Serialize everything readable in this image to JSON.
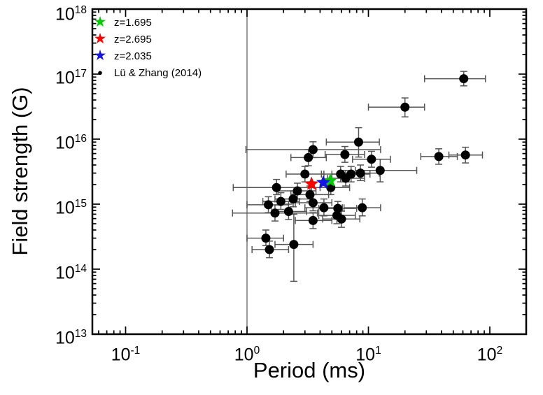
{
  "chart_data": {
    "type": "scatter",
    "title": "",
    "xlabel": "Period (ms)",
    "ylabel": "Field strength (G)",
    "x_scale": "log",
    "y_scale": "log",
    "xlim": [
      0.053,
      200
    ],
    "ylim": [
      10000000000000.0,
      1e+18
    ],
    "x_tick_exponents": [
      -1,
      0,
      1,
      2
    ],
    "y_tick_exponents": [
      13,
      14,
      15,
      16,
      17,
      18
    ],
    "grid": false,
    "legend_position": "top-left",
    "vertical_reference_line_x": 1,
    "colors": {
      "green_star": "#00cc00",
      "red_star": "#ff0000",
      "blue_star": "#1414e6",
      "data_points": "#000000",
      "error_bars": "#555555",
      "reference_line": "#808080"
    },
    "series": [
      {
        "name": "z=1.695",
        "marker": "star",
        "color": "#00cc00",
        "points": [
          {
            "x": 4.85,
            "y": 2300000000000000.0
          }
        ]
      },
      {
        "name": "z=2.695",
        "marker": "star",
        "color": "#ff0000",
        "points": [
          {
            "x": 3.4,
            "y": 2050000000000000.0
          }
        ]
      },
      {
        "name": "z=2.035",
        "marker": "star",
        "color": "#1414e6",
        "points": [
          {
            "x": 4.25,
            "y": 2150000000000000.0
          }
        ]
      },
      {
        "name": "Lü & Zhang (2014)",
        "marker": "circle",
        "color": "#000000",
        "points": [
          {
            "x": 61,
            "y": 8.5e+16,
            "xerr": [
              29,
              92
            ],
            "yerr": [
              6.6e+16,
              1.1e+17
            ]
          },
          {
            "x": 20,
            "y": 3.1e+16,
            "xerr": [
              10,
              29
            ],
            "yerr": [
              2.2e+16,
              4.3e+16
            ]
          },
          {
            "x": 8.3,
            "y": 9000000000000000.0,
            "xerr": [
              4.5,
              12.3
            ],
            "yerr": [
              5300000000000000.0,
              1.5e+16
            ]
          },
          {
            "x": 38,
            "y": 5400000000000000.0,
            "xerr": [
              27,
              54
            ],
            "yerr": [
              4100000000000000.0,
              7100000000000000.0
            ]
          },
          {
            "x": 63,
            "y": 5700000000000000.0,
            "xerr": [
              46,
              87
            ],
            "yerr": [
              4300000000000000.0,
              7500000000000000.0
            ]
          },
          {
            "x": 3.5,
            "y": 6900000000000000.0,
            "xerr": [
              0.98,
              12.6
            ],
            "yerr": [
              5200000000000000.0,
              9100000000000000.0
            ]
          },
          {
            "x": 3.2,
            "y": 5200000000000000.0,
            "xerr": [
              2.3,
              4.5
            ],
            "yerr": [
              3900000000000000.0,
              6900000000000000.0
            ]
          },
          {
            "x": 6.4,
            "y": 5800000000000000.0,
            "xerr": [
              4.4,
              9.3
            ],
            "yerr": [
              4400000000000000.0,
              7700000000000000.0
            ]
          },
          {
            "x": 10.6,
            "y": 4900000000000000.0,
            "xerr": [
              7.4,
              15.2
            ],
            "yerr": [
              3700000000000000.0,
              6500000000000000.0
            ]
          },
          {
            "x": 12.5,
            "y": 3300000000000000.0,
            "xerr": [
              7.8,
              25
            ],
            "yerr": [
              2200000000000000.0,
              4900000000000000.0
            ]
          },
          {
            "x": 3.0,
            "y": 2900000000000000.0,
            "xerr": [
              2.1,
              4.3
            ],
            "yerr": [
              2200000000000000.0,
              3800000000000000.0
            ]
          },
          {
            "x": 5.9,
            "y": 2900000000000000.0,
            "xerr": [
              4.1,
              8.4
            ],
            "yerr": [
              2200000000000000.0,
              3800000000000000.0
            ]
          },
          {
            "x": 6.5,
            "y": 2500000000000000.0,
            "xerr": [
              4.6,
              9.3
            ],
            "yerr": [
              1900000000000000.0,
              3300000000000000.0
            ]
          },
          {
            "x": 7.2,
            "y": 2900000000000000.0,
            "xerr": [
              5.0,
              10.3
            ],
            "yerr": [
              2200000000000000.0,
              3800000000000000.0
            ]
          },
          {
            "x": 8.6,
            "y": 3000000000000000.0,
            "xerr": [
              6.0,
              12.3
            ],
            "yerr": [
              2300000000000000.0,
              4000000000000000.0
            ]
          },
          {
            "x": 4.9,
            "y": 1800000000000000.0,
            "xerr": [
              3.4,
              7.0
            ],
            "yerr": [
              1400000000000000.0,
              2400000000000000.0
            ]
          },
          {
            "x": 1.75,
            "y": 1800000000000000.0,
            "xerr": [
              0.77,
              4.0
            ],
            "yerr": [
              1400000000000000.0,
              2400000000000000.0
            ]
          },
          {
            "x": 2.6,
            "y": 1600000000000000.0,
            "xerr": [
              1.8,
              3.7
            ],
            "yerr": [
              1200000000000000.0,
              2100000000000000.0
            ]
          },
          {
            "x": 2.4,
            "y": 1200000000000000.0,
            "xerr": [
              1.7,
              3.4
            ],
            "yerr": [
              910000000000000.0,
              1600000000000000.0
            ]
          },
          {
            "x": 1.5,
            "y": 980000000000000.0,
            "xerr": [
              1.0,
              2.2
            ],
            "yerr": [
              740000000000000.0,
              1300000000000000.0
            ]
          },
          {
            "x": 1.9,
            "y": 1100000000000000.0,
            "xerr": [
              1.35,
              2.7
            ],
            "yerr": [
              830000000000000.0,
              1500000000000000.0
            ]
          },
          {
            "x": 1.7,
            "y": 730000000000000.0,
            "xerr": [
              0.76,
              3.8
            ],
            "yerr": [
              550000000000000.0,
              970000000000000.0
            ]
          },
          {
            "x": 2.2,
            "y": 770000000000000.0,
            "xerr": [
              1.6,
              3.1
            ],
            "yerr": [
              580000000000000.0,
              1000000000000000.0
            ]
          },
          {
            "x": 3.3,
            "y": 1400000000000000.0,
            "xerr": [
              2.3,
              4.7
            ],
            "yerr": [
              1100000000000000.0,
              1900000000000000.0
            ]
          },
          {
            "x": 3.5,
            "y": 1050000000000000.0,
            "xerr": [
              2.5,
              5.0
            ],
            "yerr": [
              790000000000000.0,
              1400000000000000.0
            ]
          },
          {
            "x": 4.3,
            "y": 880000000000000.0,
            "xerr": [
              3.0,
              6.1
            ],
            "yerr": [
              660000000000000.0,
              1200000000000000.0
            ]
          },
          {
            "x": 5.6,
            "y": 860000000000000.0,
            "xerr": [
              3.9,
              8.0
            ],
            "yerr": [
              650000000000000.0,
              1100000000000000.0
            ]
          },
          {
            "x": 5.5,
            "y": 670000000000000.0,
            "xerr": [
              3.9,
              7.8
            ],
            "yerr": [
              500000000000000.0,
              890000000000000.0
            ]
          },
          {
            "x": 6.0,
            "y": 590000000000000.0,
            "xerr": [
              4.2,
              8.5
            ],
            "yerr": [
              440000000000000.0,
              780000000000000.0
            ]
          },
          {
            "x": 3.5,
            "y": 560000000000000.0,
            "xerr": [
              2.5,
              5.0
            ],
            "yerr": [
              420000000000000.0,
              740000000000000.0
            ]
          },
          {
            "x": 8.9,
            "y": 880000000000000.0,
            "xerr": [
              6.3,
              12.6
            ],
            "yerr": [
              660000000000000.0,
              1200000000000000.0
            ]
          },
          {
            "x": 1.43,
            "y": 300000000000000.0,
            "xerr": [
              1.0,
              2.0
            ],
            "yerr": [
              230000000000000.0,
              400000000000000.0
            ]
          },
          {
            "x": 1.53,
            "y": 200000000000000.0,
            "xerr": [
              1.1,
              2.2
            ],
            "yerr": [
              150000000000000.0,
              270000000000000.0
            ]
          },
          {
            "x": 2.43,
            "y": 240000000000000.0,
            "xerr": [
              1.7,
              3.5
            ],
            "yerr": [
              65000000000000.0,
              700000000000000.0
            ]
          }
        ]
      }
    ]
  }
}
